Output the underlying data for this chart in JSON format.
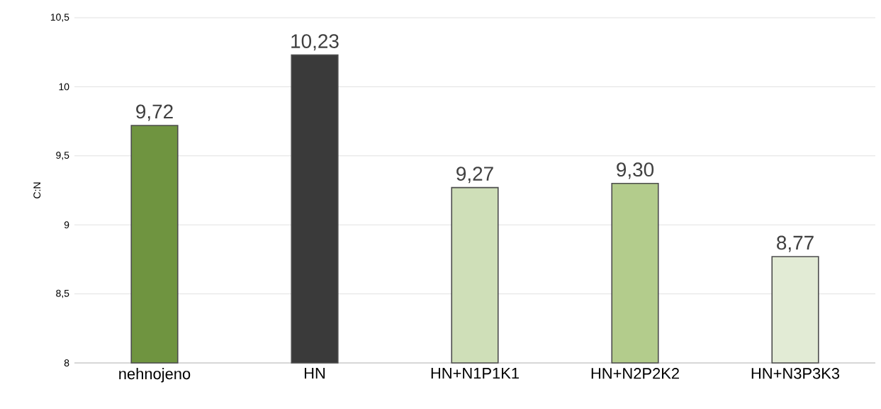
{
  "chart_data": {
    "type": "bar",
    "ylabel": "C:N",
    "categories": [
      "nehnojeno",
      "HN",
      "HN+N1P1K1",
      "HN+N2P2K2",
      "HN+N3P3K3"
    ],
    "values": [
      9.72,
      10.23,
      9.27,
      9.3,
      8.77
    ],
    "colors": [
      "#6f9440",
      "#3a3a3a",
      "#cfdfb8",
      "#b3cc8c",
      "#e2ebd5"
    ],
    "value_labels": [
      "9,72",
      "10,23",
      "9,27",
      "9,30",
      "8,77"
    ],
    "ylim": [
      8,
      10.5
    ],
    "yticks": [
      8,
      {
        "value": 8.5,
        "label": "8,5"
      },
      9,
      {
        "value": 9.5,
        "label": "9,5"
      },
      10,
      {
        "value": 10.5,
        "label": "10,5"
      }
    ],
    "grid": "y"
  }
}
